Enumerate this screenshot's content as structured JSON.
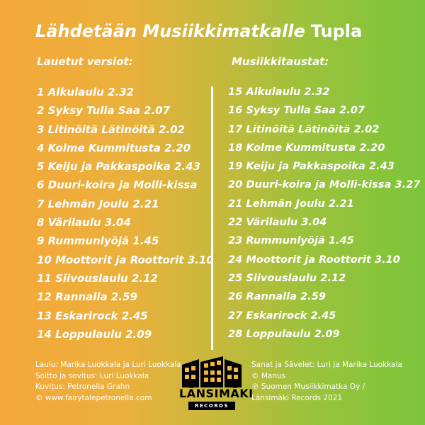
{
  "title": "Lähdetään Musiikkimatkalle",
  "title_badge": "Tupla",
  "left_column": {
    "heading": "Lauetut versiot:",
    "tracks": [
      "1 Alkulaulu 2.32",
      "2 Syksy Tulla Saa 2.07",
      "3 Litinöitä Lätinöitä 2.02",
      "4 Kolme Kummitusta 2.20",
      "5 Keiju ja Pakkaspoika 2.43",
      "6 Duuri-koira ja Molli-kissa",
      "7 Lehmän Joulu 2.21",
      "8 Värilaulu 3.04",
      "9 Rummunlyöjä 1.45",
      "10 Moottorit ja Roottorit 3.10",
      "11 Siivouslaulu 2.12",
      "12 Rannalla 2.59",
      "13 Eskarirock 2.45",
      "14 Loppulaulu 2.09"
    ]
  },
  "right_column": {
    "heading": "Musiikkitaustat:",
    "tracks": [
      "15 Alkulaulu 2.32",
      "16 Syksy Tulla Saa 2.07",
      "17 Litinöitä Lätinöitä 2.02",
      "18 Kolme Kummitusta 2.20",
      "19 Keiju ja Pakkaspoika 2.43",
      "20 Duuri-koira ja Molli-kissa 3.27",
      "21 Lehmän Joulu 2.21",
      "22 Värilaulu 3.04",
      "23 Rummunlyöjä 1.45",
      "24 Moottorit ja Roottorit 3.10",
      "25 Siivouslaulu 2.12",
      "26 Rannalla 2.59",
      "27 Eskarirock 2.45",
      "28 Loppulaulu 2.09"
    ]
  },
  "credits_left": [
    "Laulu: Marika Luokkala ja Luri Luokkala",
    "Soitto ja sovitus: Luri Luokkala",
    "Kuvitus: Petronella Grahn",
    "© www.fairytalepetronella.com"
  ],
  "credits_right": [
    "Sanat ja Sävelet: Luri ja Marika Luokkala",
    "© Manus",
    "℗ Suomen Musiikkimatka Oy /",
    "Länsimäki Records 2021"
  ],
  "logo": {
    "name": "LÄNSIMÄKI",
    "sub": "RECORDS"
  },
  "colors": {
    "gradient_start": "#f4a83a",
    "gradient_end": "#7cc53a",
    "text": "#ffffff"
  }
}
